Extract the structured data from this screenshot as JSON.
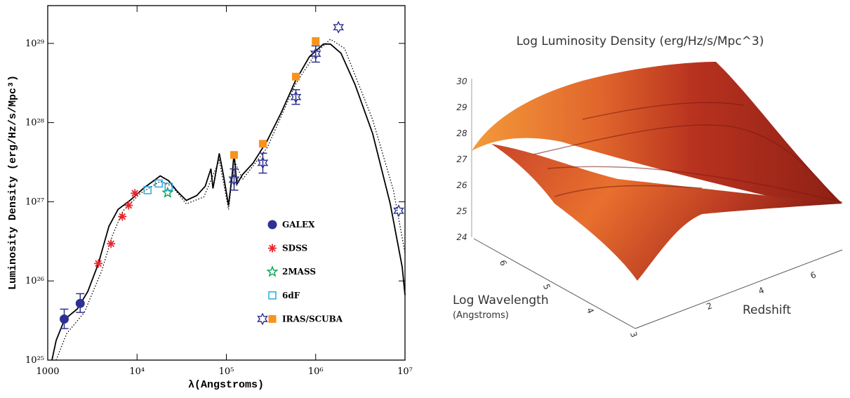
{
  "chart_data": [
    {
      "type": "scatter",
      "xlabel": "λ(Angstroms)",
      "ylabel": "Luminosity Density (erg/Hz/s/Mpc³)",
      "xscale": "log",
      "yscale": "log",
      "xlim": [
        1000,
        10000000
      ],
      "ylim": [
        1e+25,
        3e+29
      ],
      "xticks": [
        1000,
        {
          "value": 10000,
          "label": "10⁴"
        },
        {
          "value": 100000,
          "label": "10⁵"
        },
        {
          "value": 1000000,
          "label": "10⁶"
        },
        {
          "value": 10000000,
          "label": "10⁷"
        }
      ],
      "yticks": [
        {
          "value": 1e+25,
          "label": "10²⁵"
        },
        {
          "value": 1e+26,
          "label": "10²⁶"
        },
        {
          "value": 1e+27,
          "label": "10²⁷"
        },
        {
          "value": 1e+28,
          "label": "10²⁸"
        },
        {
          "value": 1e+29,
          "label": "10²⁹"
        }
      ],
      "legend": "lower right",
      "series": [
        {
          "type": "line",
          "style": "solid",
          "color": "#000000",
          "x": [
            1115,
            1243,
            1545,
            2142,
            2812,
            3690,
            4842,
            6128,
            8340,
            11990,
            15740,
            18200,
            22600,
            28100,
            35600,
            46700,
            58000,
            67100,
            70800,
            83300,
            93000,
            105700,
            115700,
            122000,
            131000,
            152000,
            199000,
            286000,
            411000,
            591000,
            850000,
            1220000,
            1460000,
            1920000,
            2760000,
            4350000,
            6840000,
            9300000,
            10000000
          ],
          "values": [
            1e+25,
            1.77e+25,
            3.26e+25,
            4.43e+25,
            7.37e+25,
            1.66e+26,
            4.9e+26,
            8e+26,
            1.04e+27,
            1.5e+27,
            1.88e+27,
            2.12e+27,
            1.84e+27,
            1.36e+27,
            1.04e+27,
            1.2e+27,
            1.57e+27,
            2.61e+27,
            1.47e+27,
            4.08e+27,
            2.12e+27,
            9e+26,
            2.12e+27,
            4.08e+27,
            1.66e+27,
            2.21e+27,
            3.07e+27,
            5.89e+27,
            1.33e+28,
            3.33e+28,
            6.79e+28,
            9.8e+28,
            9.8e+28,
            7.52e+28,
            3.01e+28,
            7.21e+27,
            9.4e+26,
            1.5e+26,
            6.65e+25
          ]
        },
        {
          "type": "line",
          "style": "dotted",
          "color": "#000000",
          "x": [
            1243,
            1632,
            2567,
            4040,
            5300,
            6960,
            10950,
            18200,
            24700,
            35600,
            55900,
            83300,
            105700,
            122000,
            152000,
            286000,
            591000,
            1000000,
            1460000,
            2100000,
            4350000,
            7400000,
            10000000
          ],
          "values": [
            1e+25,
            2.17e+25,
            4e+25,
            1.36e+26,
            3.76e+26,
            7.67e+26,
            1.28e+27,
            1.81e+27,
            1.57e+27,
            9.4e+26,
            1.15e+27,
            3.33e+27,
            8e+26,
            3.33e+27,
            1.92e+27,
            4.8e+27,
            3.01e+28,
            7.52e+28,
            1.13e+29,
            8.67e+28,
            1.08e+28,
            1.41e+27,
            2.26e+26
          ]
        },
        {
          "type": "scatter",
          "name": "GALEX",
          "marker": "circle",
          "color": "#2e3192",
          "x": [
            1530,
            2310
          ],
          "values": [
            3.3e+25,
            5.2e+25
          ],
          "ylow": [
            2.5e+25,
            4e+25
          ],
          "yhigh": [
            4.4e+25,
            6.9e+25
          ]
        },
        {
          "type": "scatter",
          "name": "SDSS",
          "marker": "asterisk",
          "color": "#e8262d",
          "x": [
            3690,
            5110,
            6840,
            8050,
            9470
          ],
          "values": [
            1.66e+26,
            2.95e+26,
            6.5e+26,
            9e+26,
            1.28e+27
          ]
        },
        {
          "type": "scatter",
          "name": "2MASS",
          "marker": "star5",
          "color": "#00a651",
          "x": [
            22000
          ],
          "values": [
            1.3e+27
          ]
        },
        {
          "type": "scatter",
          "name": "6dF",
          "marker": "square-open",
          "color": "#27aae1",
          "x": [
            13100,
            17500,
            22600
          ],
          "values": [
            1.4e+27,
            1.7e+27,
            1.55e+27
          ]
        },
        {
          "type": "scatter",
          "name": "IRAS/SCUBA",
          "marker": "star6",
          "color": "#2e3192",
          "x": [
            122000,
            256000,
            600000,
            1000000,
            1800000,
            8500000
          ],
          "values": [
            1.9e+27,
            3.1e+27,
            2.1e+28,
            7.4e+28,
            1.6e+29,
            7.7e+26
          ],
          "ylow": [
            1.4e+27,
            2.3e+27,
            1.7e+28,
            5.8e+28,
            null,
            null
          ],
          "yhigh": [
            2.6e+27,
            4.1e+27,
            2.6e+28,
            9.3e+28,
            null,
            null
          ]
        },
        {
          "type": "scatter",
          "marker": "square",
          "color": "#f7941d",
          "x": [
            122000,
            256000,
            600000,
            1000000
          ],
          "values": [
            3.9e+27,
            5.4e+27,
            3.8e+28,
            1.07e+29
          ]
        }
      ]
    },
    {
      "type": "surface",
      "title": "Log Luminosity Density (erg/Hz/s/Mpc^3)",
      "xlabel": "Log Wavelength",
      "xlabel_note": "(Angstroms)",
      "ylabel": "Redshift",
      "xticks": [
        3,
        4,
        5,
        6
      ],
      "yticks": [
        2,
        4,
        6
      ],
      "zticks": [
        24,
        25,
        26,
        27,
        28,
        29,
        30
      ]
    }
  ]
}
